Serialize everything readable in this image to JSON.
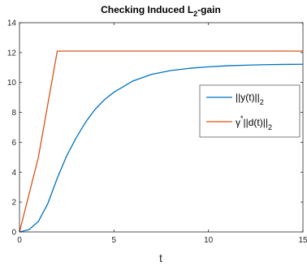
{
  "chart_data": {
    "type": "line",
    "title": {
      "main": "Checking Induced L",
      "sub": "2",
      "suffix": "-gain"
    },
    "xlabel": "t",
    "ylabel": "",
    "xlim": [
      0,
      15
    ],
    "ylim": [
      0,
      14
    ],
    "xticks": [
      0,
      5,
      10,
      15
    ],
    "yticks": [
      0,
      2,
      4,
      6,
      8,
      10,
      12,
      14
    ],
    "grid": false,
    "legend_position": "right",
    "series": [
      {
        "name": "||y(t)||₂",
        "legend": {
          "base": "||y(t)||",
          "sub": "2"
        },
        "color": "#0072BD",
        "x": [
          0,
          0.5,
          1,
          1.5,
          2,
          2.5,
          3,
          3.5,
          4,
          4.5,
          5,
          6,
          7,
          8,
          9,
          10,
          11,
          12,
          13,
          14,
          15
        ],
        "y": [
          0,
          0.15,
          0.7,
          1.9,
          3.6,
          5.1,
          6.3,
          7.35,
          8.2,
          8.85,
          9.35,
          10.1,
          10.55,
          10.8,
          10.95,
          11.05,
          11.12,
          11.16,
          11.19,
          11.21,
          11.22
        ]
      },
      {
        "name": "γ*||d(t)||₂",
        "legend": {
          "base": "γ",
          "sup": "*",
          "rest": "||d(t)||",
          "sub": "2"
        },
        "color": "#D95319",
        "x": [
          0,
          1,
          2,
          15
        ],
        "y": [
          0,
          5,
          12.1,
          12.1
        ]
      }
    ]
  }
}
